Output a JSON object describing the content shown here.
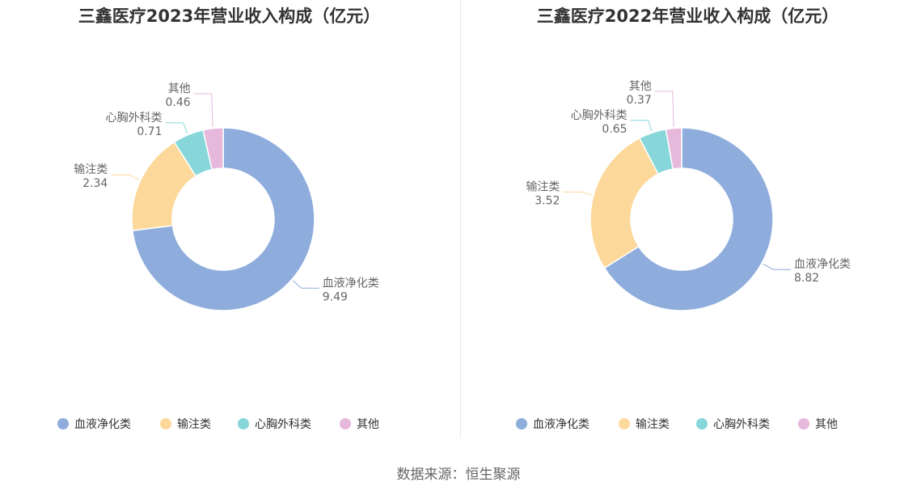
{
  "source_label": "数据来源：恒生聚源",
  "charts": [
    {
      "title": "三鑫医疗2023年营业收入构成（亿元）",
      "categories": [
        "血液净化类",
        "输注类",
        "心胸外科类",
        "其他"
      ],
      "values": [
        9.49,
        2.34,
        0.71,
        0.46
      ],
      "value_labels": [
        "9.49",
        "2.34",
        "0.71",
        "0.46"
      ]
    },
    {
      "title": "三鑫医疗2022年营业收入构成（亿元）",
      "categories": [
        "血液净化类",
        "输注类",
        "心胸外科类",
        "其他"
      ],
      "values": [
        8.82,
        3.52,
        0.65,
        0.37
      ],
      "value_labels": [
        "8.82",
        "3.52",
        "0.65",
        "0.37"
      ]
    }
  ],
  "chart_data": [
    {
      "type": "pie",
      "title": "三鑫医疗2023年营业收入构成（亿元）",
      "categories": [
        "血液净化类",
        "输注类",
        "心胸外科类",
        "其他"
      ],
      "values": [
        9.49,
        2.34,
        0.71,
        0.46
      ],
      "donut": true,
      "legend_position": "bottom",
      "colors": [
        "#8eaddc",
        "#fdd89b",
        "#87d6d9",
        "#e6b8dc"
      ]
    },
    {
      "type": "pie",
      "title": "三鑫医疗2022年营业收入构成（亿元）",
      "categories": [
        "血液净化类",
        "输注类",
        "心胸外科类",
        "其他"
      ],
      "values": [
        8.82,
        3.52,
        0.65,
        0.37
      ],
      "donut": true,
      "legend_position": "bottom",
      "colors": [
        "#8eaddc",
        "#fdd89b",
        "#87d6d9",
        "#e6b8dc"
      ]
    }
  ],
  "colors": {
    "slice": [
      "#8eaddc",
      "#fdd89b",
      "#87d6d9",
      "#e6b8dc"
    ]
  }
}
